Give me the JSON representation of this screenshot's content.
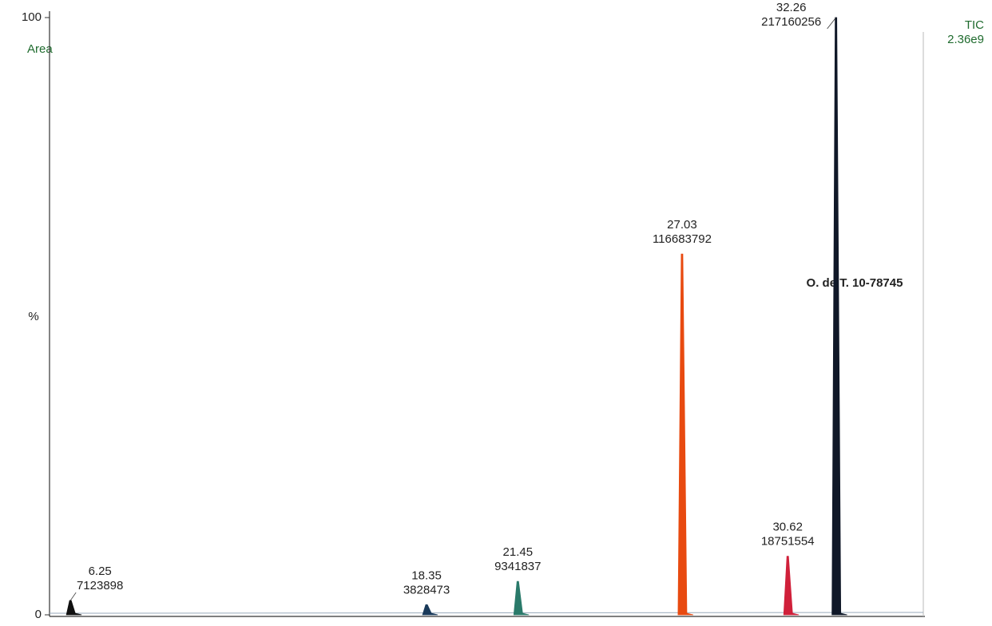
{
  "chart_data": {
    "type": "chromatogram",
    "trace_label": "TIC",
    "scale_label": "2.36e9",
    "mode_label": "Area",
    "y_label": "%",
    "annotation": "O. de T. 10-78745",
    "xlim": [
      5.54,
      35.2
    ],
    "ylim": [
      0,
      100
    ],
    "yticks": [
      0,
      100
    ],
    "peaks": [
      {
        "rt": 6.25,
        "area": 7123898,
        "height": 2.4,
        "color": "#111111"
      },
      {
        "rt": 18.35,
        "area": 3828473,
        "height": 1.7,
        "color": "#1a3a5a"
      },
      {
        "rt": 21.45,
        "area": 9341837,
        "height": 5.6,
        "color": "#2a7a6a"
      },
      {
        "rt": 27.03,
        "area": 116683792,
        "height": 60.4,
        "color": "#e84a10"
      },
      {
        "rt": 30.62,
        "area": 18751554,
        "height": 9.8,
        "color": "#d0203a"
      },
      {
        "rt": 32.26,
        "area": 217160256,
        "height": 100,
        "color": "#101828"
      }
    ]
  }
}
